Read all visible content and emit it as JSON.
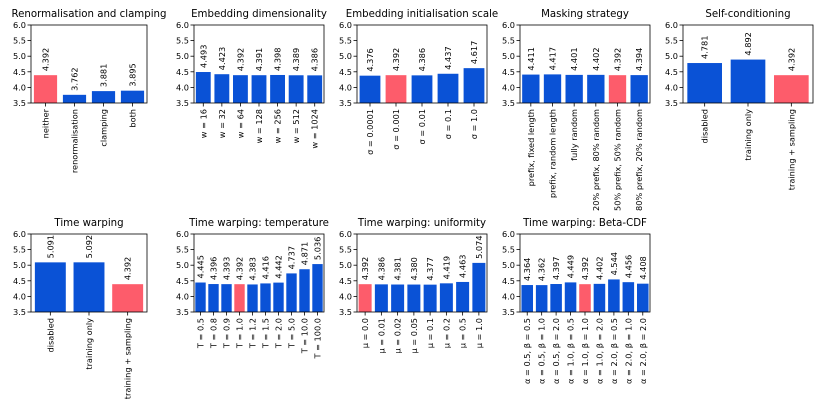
{
  "colors": {
    "blue": "#0a52d6",
    "red": "#fd5c6b",
    "axis": "#000000"
  },
  "chart_data": [
    {
      "type": "bar",
      "title": "Renormalisation and clamping",
      "categories": [
        "neither",
        "renormalisation",
        "clamping",
        "both"
      ],
      "values": [
        4.392,
        3.762,
        3.881,
        3.895
      ],
      "labels": [
        "4.392",
        "3.762",
        "3.881",
        "3.895"
      ],
      "highlight": [
        0
      ],
      "ylim": [
        3.5,
        6.0
      ],
      "yticks": [
        "3.5",
        "4.0",
        "4.5",
        "5.0",
        "5.5",
        "6.0"
      ]
    },
    {
      "type": "bar",
      "title": "Embedding dimensionality",
      "categories": [
        "w = 16",
        "w = 32",
        "w = 64",
        "w = 128",
        "w = 256",
        "w = 512",
        "w = 1024"
      ],
      "values": [
        4.493,
        4.423,
        4.392,
        4.391,
        4.398,
        4.389,
        4.386
      ],
      "labels": [
        "4.493",
        "4.423",
        "4.392",
        "4.391",
        "4.398",
        "4.389",
        "4.386"
      ],
      "highlight": [],
      "ylim": [
        3.5,
        6.0
      ],
      "yticks": [
        "3.5",
        "4.0",
        "4.5",
        "5.0",
        "5.5",
        "6.0"
      ]
    },
    {
      "type": "bar",
      "title": "Embedding initialisation scale",
      "categories": [
        "σ = 0.0001",
        "σ = 0.001",
        "σ = 0.01",
        "σ = 0.1",
        "σ = 1.0"
      ],
      "values": [
        4.376,
        4.392,
        4.386,
        4.437,
        4.617
      ],
      "labels": [
        "4.376",
        "4.392",
        "4.386",
        "4.437",
        "4.617"
      ],
      "highlight": [
        1
      ],
      "ylim": [
        3.5,
        6.0
      ],
      "yticks": [
        "3.5",
        "4.0",
        "4.5",
        "5.0",
        "5.5",
        "6.0"
      ]
    },
    {
      "type": "bar",
      "title": "Masking strategy",
      "categories": [
        "prefix, fixed length",
        "prefix, random length",
        "fully random",
        "20% prefix, 80% random",
        "50% prefix, 50% random",
        "80% prefix, 20% random"
      ],
      "values": [
        4.411,
        4.417,
        4.401,
        4.402,
        4.392,
        4.394
      ],
      "labels": [
        "4.411",
        "4.417",
        "4.401",
        "4.402",
        "4.392",
        "4.394"
      ],
      "highlight": [
        4
      ],
      "ylim": [
        3.5,
        6.0
      ],
      "yticks": [
        "3.5",
        "4.0",
        "4.5",
        "5.0",
        "5.5",
        "6.0"
      ]
    },
    {
      "type": "bar",
      "title": "Self-conditioning",
      "categories": [
        "disabled",
        "training only",
        "training + sampling"
      ],
      "values": [
        4.781,
        4.892,
        4.392
      ],
      "labels": [
        "4.781",
        "4.892",
        "4.392"
      ],
      "highlight": [
        2
      ],
      "ylim": [
        3.5,
        6.0
      ],
      "yticks": [
        "3.5",
        "4.0",
        "4.5",
        "5.0",
        "5.5",
        "6.0"
      ]
    },
    {
      "type": "bar",
      "title": "Time warping",
      "categories": [
        "disabled",
        "training only",
        "training + sampling"
      ],
      "values": [
        5.091,
        5.092,
        4.392
      ],
      "labels": [
        "5.091",
        "5.092",
        "4.392"
      ],
      "highlight": [
        2
      ],
      "ylim": [
        3.5,
        6.0
      ],
      "yticks": [
        "3.5",
        "4.0",
        "4.5",
        "5.0",
        "5.5",
        "6.0"
      ]
    },
    {
      "type": "bar",
      "title": "Time warping: temperature",
      "categories": [
        "T = 0.5",
        "T = 0.8",
        "T = 0.9",
        "T = 1.0",
        "T = 1.2",
        "T = 1.5",
        "T = 2.0",
        "T = 5.0",
        "T = 10.0",
        "T = 100.0"
      ],
      "values": [
        4.445,
        4.396,
        4.393,
        4.392,
        4.383,
        4.416,
        4.442,
        4.737,
        4.871,
        5.036
      ],
      "labels": [
        "4.445",
        "4.396",
        "4.393",
        "4.392",
        "4.383",
        "4.416",
        "4.442",
        "4.737",
        "4.871",
        "5.036"
      ],
      "highlight": [
        3
      ],
      "ylim": [
        3.5,
        6.0
      ],
      "yticks": [
        "3.5",
        "4.0",
        "4.5",
        "5.0",
        "5.5",
        "6.0"
      ]
    },
    {
      "type": "bar",
      "title": "Time warping: uniformity",
      "categories": [
        "μ = 0.0",
        "μ = 0.01",
        "μ = 0.02",
        "μ = 0.05",
        "μ = 0.1",
        "μ = 0.2",
        "μ = 0.5",
        "μ = 1.0"
      ],
      "values": [
        4.392,
        4.386,
        4.381,
        4.38,
        4.377,
        4.419,
        4.463,
        5.074
      ],
      "labels": [
        "4.392",
        "4.386",
        "4.381",
        "4.380",
        "4.377",
        "4.419",
        "4.463",
        "5.074"
      ],
      "highlight": [
        0
      ],
      "ylim": [
        3.5,
        6.0
      ],
      "yticks": [
        "3.5",
        "4.0",
        "4.5",
        "5.0",
        "5.5",
        "6.0"
      ]
    },
    {
      "type": "bar",
      "title": "Time warping: Beta-CDF",
      "categories": [
        "α = 0.5, β = 0.5",
        "α = 0.5, β = 1.0",
        "α = 0.5, β = 2.0",
        "α = 1.0, β = 0.5",
        "α = 1.0, β = 1.0",
        "α = 1.0, β = 2.0",
        "α = 2.0, β = 0.5",
        "α = 2.0, β = 1.0",
        "α = 2.0, β = 2.0"
      ],
      "values": [
        4.364,
        4.362,
        4.397,
        4.449,
        4.392,
        4.402,
        4.544,
        4.456,
        4.408
      ],
      "labels": [
        "4.364",
        "4.362",
        "4.397",
        "4.449",
        "4.392",
        "4.402",
        "4.544",
        "4.456",
        "4.408"
      ],
      "highlight": [
        4
      ],
      "ylim": [
        3.5,
        6.0
      ],
      "yticks": [
        "3.5",
        "4.0",
        "4.5",
        "5.0",
        "5.5",
        "6.0"
      ]
    }
  ]
}
